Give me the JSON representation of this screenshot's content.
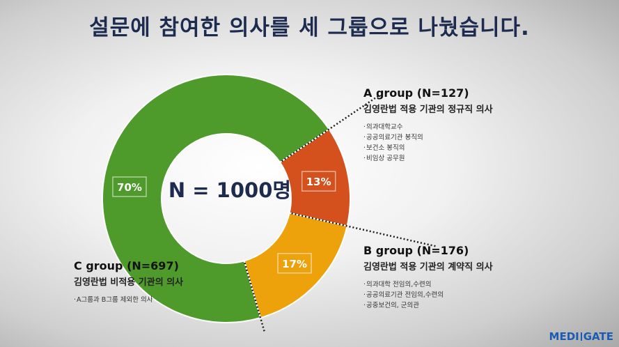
{
  "title": "설문에 참여한 의사를 세 그룹으로 나눴습니다.",
  "chart_data": {
    "type": "pie",
    "variant": "donut",
    "center_label": "N = 1000명",
    "slices": [
      {
        "label": "13%",
        "value": 13,
        "color": "#d4501c"
      },
      {
        "label": "17%",
        "value": 17,
        "color": "#eda10a"
      },
      {
        "label": "70%",
        "value": 70,
        "color": "#4e9a2a"
      }
    ]
  },
  "groups": {
    "a": {
      "name": "A group (N=127)",
      "desc": "김영란법 적용 기관의 정규직 의사",
      "items": [
        "의과대학교수",
        "공공의료기관 봉직의",
        "보건소 봉직의",
        "비임상 공무원"
      ]
    },
    "b": {
      "name": "B group (N=176)",
      "desc": "김영란법 적용 기관의 계약직 의사",
      "items": [
        "의과대학 전임의,수련의",
        "공공의료기관 전임의,수련의",
        "공중보건의, 군의관"
      ]
    },
    "c": {
      "name": "C group (N=697)",
      "desc": "김영란법 비적용 기관의 의사",
      "items": [
        "A그룹과 B그룹 제외한 의사"
      ]
    }
  },
  "logo": {
    "left": "MEDI",
    "right": "GATE"
  }
}
